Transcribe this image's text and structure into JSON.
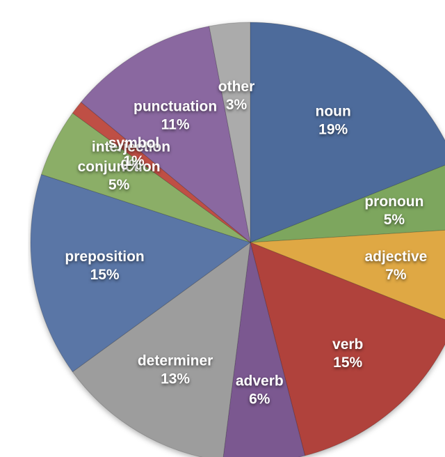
{
  "page": {
    "background_color": "#ffffff"
  },
  "chart_data": {
    "type": "pie",
    "title": "",
    "legend_position": "none",
    "start_angle_deg": 0,
    "direction": "clockwise",
    "label_text_color": "#ffffff",
    "slices": [
      {
        "label": "noun",
        "value": 19,
        "display": "19%",
        "color": "#4d6b9b"
      },
      {
        "label": "pronoun",
        "value": 5,
        "display": "5%",
        "color": "#7da65e"
      },
      {
        "label": "adjective",
        "value": 7,
        "display": "7%",
        "color": "#dfa844"
      },
      {
        "label": "verb",
        "value": 15,
        "display": "15%",
        "color": "#b0423c"
      },
      {
        "label": "adverb",
        "value": 6,
        "display": "6%",
        "color": "#7b5890"
      },
      {
        "label": "determiner",
        "value": 13,
        "display": "13%",
        "color": "#9d9d9d"
      },
      {
        "label": "preposition",
        "value": 15,
        "display": "15%",
        "color": "#5a76a6"
      },
      {
        "label": "conjunction",
        "value": 5,
        "display": "5%",
        "color": "#8bae67"
      },
      {
        "label": "interjection",
        "value": 0,
        "display": "0%",
        "color": "#e6b158"
      },
      {
        "label": "symbol",
        "value": 1,
        "display": "1%",
        "color": "#bf4f45"
      },
      {
        "label": "punctuation",
        "value": 11,
        "display": "11%",
        "color": "#8a68a0"
      },
      {
        "label": "other",
        "value": 3,
        "display": "3%",
        "color": "#ababab"
      }
    ]
  }
}
